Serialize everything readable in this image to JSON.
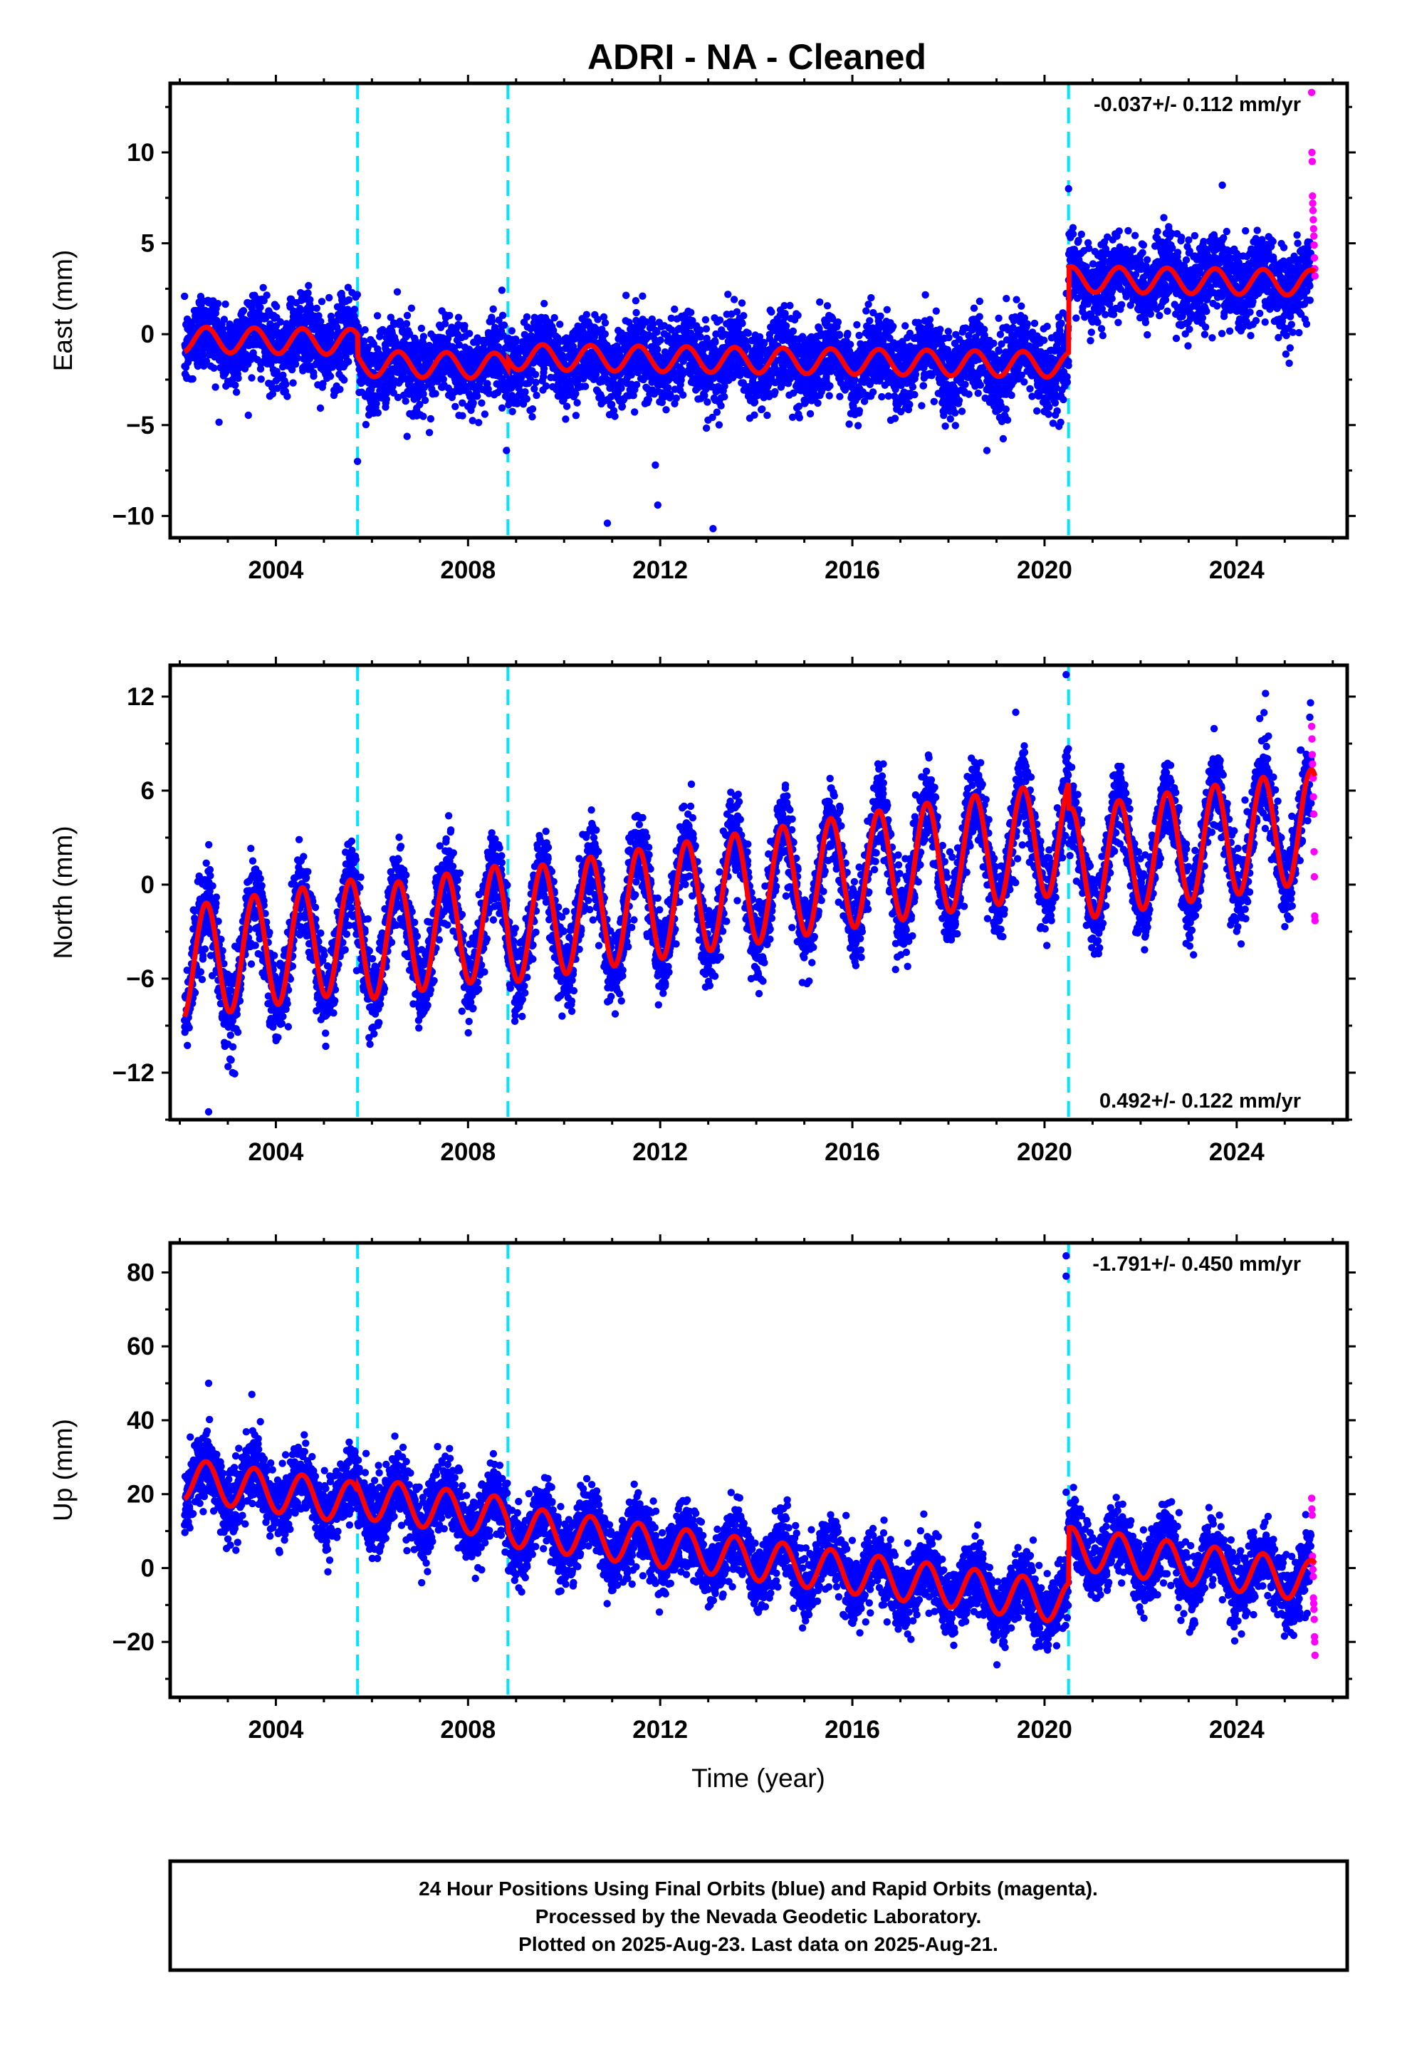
{
  "chart_data": {
    "type": "scatter",
    "title": "ADRI  - NA - Cleaned",
    "xlabel": "Time (year)",
    "xlim": [
      2001.8,
      2026.3
    ],
    "x_ticks": [
      2004,
      2008,
      2012,
      2016,
      2020,
      2024
    ],
    "x_tick_labels": [
      "2004",
      "2008",
      "2012",
      "2016",
      "2020",
      "2024"
    ],
    "data_start": 2002.1,
    "final_end": 2025.55,
    "rapid_start": 2025.56,
    "rapid_end": 2025.63,
    "events": [
      2005.7,
      2008.83,
      2020.5
    ],
    "colors": {
      "final": "#0000ff",
      "rapid": "#ff00ff",
      "model": "#ff0000",
      "event": "#00e5ff"
    },
    "panels": [
      {
        "id": "east",
        "ylabel": "East (mm)",
        "ylim": [
          -11.2,
          13.8
        ],
        "y_ticks": [
          -10,
          -5,
          0,
          5,
          10
        ],
        "y_tick_labels": [
          "−10",
          "−5",
          "0",
          "5",
          "10"
        ],
        "rate_label": "-0.037+/- 0.112 mm/yr",
        "rate_position": "top-right",
        "trend": {
          "rate": -0.037,
          "value_2002": -0.3
        },
        "seasonal": {
          "amplitude": 0.7,
          "peak_phase": 0.55
        },
        "offsets": [
          {
            "year": 2005.7,
            "step": -1.2
          },
          {
            "year": 2008.83,
            "step": 0.5
          },
          {
            "year": 2020.5,
            "step": 4.7
          }
        ],
        "scatter_sd": 1.1,
        "rapid_values": [
          13.3,
          10.0,
          9.5,
          7.6,
          7.2,
          6.8,
          6.3,
          5.8,
          5.4,
          4.9,
          4.2,
          3.6,
          3.2
        ],
        "outliers": [
          {
            "x": 2011.9,
            "y": -7.2
          },
          {
            "x": 2011.95,
            "y": -9.4
          },
          {
            "x": 2013.1,
            "y": -10.7
          },
          {
            "x": 2010.9,
            "y": -10.4
          },
          {
            "x": 2005.7,
            "y": -7.0
          },
          {
            "x": 2008.8,
            "y": -6.4
          },
          {
            "x": 2018.8,
            "y": -6.4
          },
          {
            "x": 2020.5,
            "y": 8.0
          },
          {
            "x": 2023.7,
            "y": 8.2
          }
        ]
      },
      {
        "id": "north",
        "ylabel": "North (mm)",
        "ylim": [
          -15,
          14
        ],
        "y_ticks": [
          -12,
          -6,
          0,
          6,
          12
        ],
        "y_tick_labels": [
          "−12",
          "−6",
          "0",
          "6",
          "12"
        ],
        "rate_label": "0.492+/- 0.122 mm/yr",
        "rate_position": "bottom-right",
        "trend": {
          "rate": 0.492,
          "value_2002": -5.0
        },
        "seasonal": {
          "amplitude": 3.6,
          "peak_phase": 0.55
        },
        "offsets": [
          {
            "year": 2005.7,
            "step": -0.6
          },
          {
            "year": 2008.83,
            "step": -0.4
          },
          {
            "year": 2020.5,
            "step": -1.8
          }
        ],
        "scatter_sd": 1.3,
        "rapid_values": [
          10.1,
          9.3,
          8.3,
          7.7,
          7.1,
          6.8,
          5.6,
          4.5,
          2.1,
          0.5,
          -2.0,
          -2.3
        ],
        "outliers": [
          {
            "x": 2002.6,
            "y": -14.5
          },
          {
            "x": 2020.45,
            "y": 13.4
          },
          {
            "x": 2024.6,
            "y": 12.2
          },
          {
            "x": 2019.4,
            "y": 11.0
          },
          {
            "x": 2003.1,
            "y": -12.0
          }
        ]
      },
      {
        "id": "up",
        "ylabel": "Up (mm)",
        "ylim": [
          -35,
          88
        ],
        "y_ticks": [
          -20,
          0,
          20,
          40,
          60,
          80
        ],
        "y_tick_labels": [
          "−20",
          "0",
          "20",
          "40",
          "60",
          "80"
        ],
        "rate_label": "-1.791+/- 0.450 mm/yr",
        "rate_position": "top-right",
        "trend": {
          "rate": -1.791,
          "value_2002": 24.0
        },
        "seasonal": {
          "amplitude": 5.6,
          "peak_phase": 0.55
        },
        "offsets": [
          {
            "year": 2005.7,
            "step": 1.5
          },
          {
            "year": 2008.83,
            "step": -2.0
          },
          {
            "year": 2020.5,
            "step": 15.0
          }
        ],
        "scatter_sd": 4.6,
        "rapid_values": [
          18.9,
          16.0,
          14.3,
          3.2,
          1.6,
          -0.4,
          -2.3,
          -8.1,
          -9.6,
          -11.2,
          -13.9,
          -18.6,
          -20.0,
          -23.6
        ],
        "outliers": [
          {
            "x": 2020.45,
            "y": 84.5
          },
          {
            "x": 2020.45,
            "y": 79.0
          },
          {
            "x": 2020.45,
            "y": 20.5
          },
          {
            "x": 2002.6,
            "y": 50.0
          },
          {
            "x": 2003.5,
            "y": 47.0
          },
          {
            "x": 2022.8,
            "y": 15.0
          }
        ]
      }
    ]
  },
  "footer": {
    "line1": "24 Hour Positions Using Final Orbits (blue) and Rapid Orbits (magenta).",
    "line2": "Processed by the Nevada Geodetic Laboratory.",
    "line3": "Plotted on 2025-Aug-23. Last data on 2025-Aug-21."
  }
}
